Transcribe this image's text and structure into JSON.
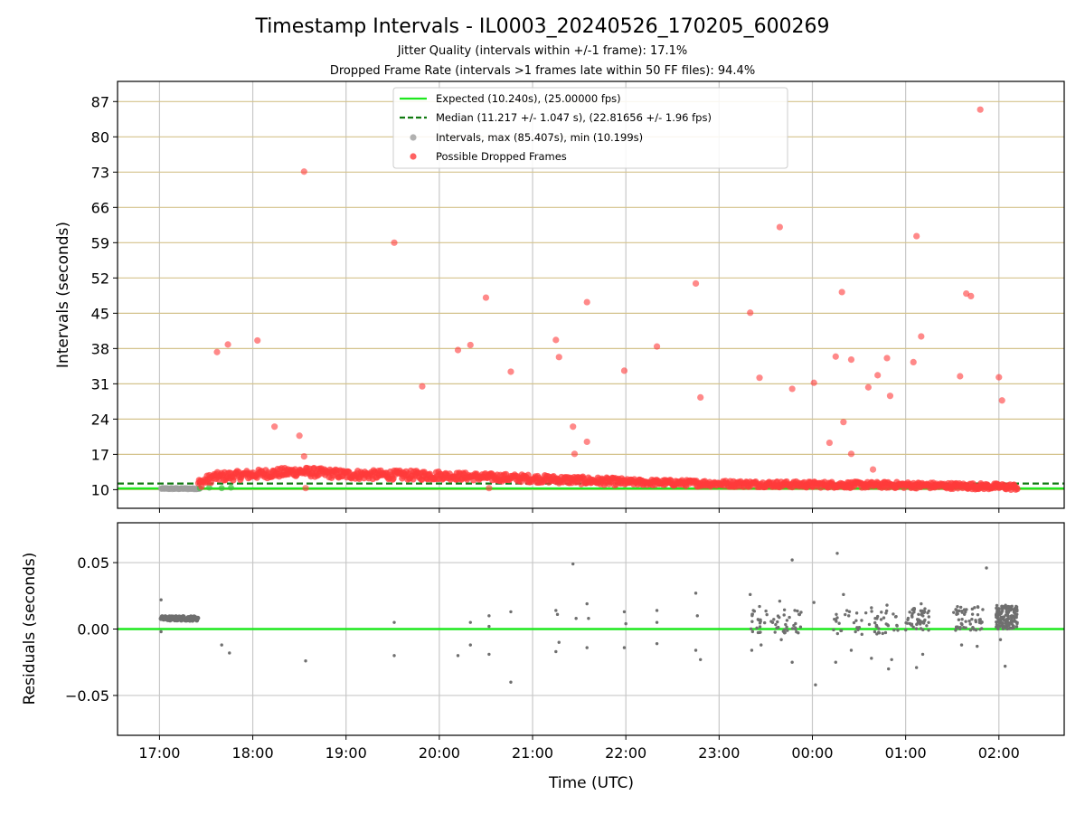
{
  "chart_data": [
    {
      "type": "scatter",
      "panel": "intervals",
      "title": "Timestamp Intervals - IL0003_20240526_170205_600269",
      "subtitles": [
        "Jitter Quality (intervals within +/-1 frame): 17.1%",
        "Dropped Frame Rate (intervals >1 frames late within 50 FF files): 94.4%"
      ],
      "ylabel": "Intervals (seconds)",
      "xlabel": "",
      "ylim": [
        6.3,
        91.0
      ],
      "xlim_hours": [
        16.55,
        26.7
      ],
      "y_ticks": [
        10,
        17,
        24,
        31,
        38,
        45,
        52,
        59,
        66,
        73,
        80,
        87
      ],
      "y_tick_labels": [
        "10",
        "17",
        "24",
        "31",
        "38",
        "45",
        "52",
        "59",
        "66",
        "73",
        "80",
        "87"
      ],
      "horizontal_grid_color": "#d4c38c",
      "vertical_grid": true,
      "legend": {
        "placement": "upper-center",
        "entries": [
          {
            "label": "Expected (10.240s), (25.00000 fps)",
            "marker": "line",
            "color": "#1ee81e"
          },
          {
            "label": "Median (11.217 +/- 1.047 s), (22.81656 +/- 1.96 fps)",
            "marker": "dashed-line",
            "color": "#117a11"
          },
          {
            "label": "Intervals, max (85.407s), min (10.199s)",
            "marker": "dot",
            "color": "#9e9e9e"
          },
          {
            "label": "Possible Dropped Frames",
            "marker": "dot",
            "color": "#ff3b3b"
          }
        ]
      },
      "expected_interval": 10.24,
      "median_interval": 11.217,
      "series": [
        {
          "name": "Intervals, max (85.407s), min (10.199s)",
          "color": "#9e9e9e",
          "description_points": "dense band ~10.2 s from 17:00 to 17:25"
        },
        {
          "name": "Possible Dropped Frames",
          "color": "#ff3b3b",
          "band": [
            {
              "x": "17:25",
              "y": 11.2
            },
            {
              "x": "17:35",
              "y": 12.5
            },
            {
              "x": "18:00",
              "y": 13.0
            },
            {
              "x": "18:30",
              "y": 13.6
            },
            {
              "x": "19:00",
              "y": 13.0
            },
            {
              "x": "20:00",
              "y": 12.8
            },
            {
              "x": "21:00",
              "y": 12.2
            },
            {
              "x": "22:00",
              "y": 11.5
            },
            {
              "x": "23:00",
              "y": 11.2
            },
            {
              "x": "00:00",
              "y": 11.0
            },
            {
              "x": "01:00",
              "y": 10.9
            },
            {
              "x": "02:00",
              "y": 10.6
            },
            {
              "x": "02:12",
              "y": 10.5
            }
          ],
          "outliers": [
            {
              "x": "17:37",
              "y": 37.3
            },
            {
              "x": "17:44",
              "y": 38.8
            },
            {
              "x": "18:03",
              "y": 39.6
            },
            {
              "x": "18:14",
              "y": 22.5
            },
            {
              "x": "18:30",
              "y": 20.7
            },
            {
              "x": "18:33",
              "y": 16.6
            },
            {
              "x": "18:33",
              "y": 73.1
            },
            {
              "x": "18:34",
              "y": 10.3
            },
            {
              "x": "19:31",
              "y": 59.0
            },
            {
              "x": "19:49",
              "y": 30.5
            },
            {
              "x": "20:12",
              "y": 37.7
            },
            {
              "x": "20:20",
              "y": 38.7
            },
            {
              "x": "20:30",
              "y": 48.1
            },
            {
              "x": "20:46",
              "y": 33.4
            },
            {
              "x": "20:32",
              "y": 10.3
            },
            {
              "x": "21:15",
              "y": 39.7
            },
            {
              "x": "21:17",
              "y": 36.3
            },
            {
              "x": "21:26",
              "y": 22.5
            },
            {
              "x": "21:27",
              "y": 17.1
            },
            {
              "x": "21:35",
              "y": 19.5
            },
            {
              "x": "21:35",
              "y": 47.2
            },
            {
              "x": "21:59",
              "y": 33.6
            },
            {
              "x": "22:20",
              "y": 38.4
            },
            {
              "x": "22:45",
              "y": 50.9
            },
            {
              "x": "22:48",
              "y": 28.3
            },
            {
              "x": "23:20",
              "y": 45.1
            },
            {
              "x": "23:26",
              "y": 32.2
            },
            {
              "x": "23:39",
              "y": 62.1
            },
            {
              "x": "23:47",
              "y": 30.0
            },
            {
              "x": "00:01",
              "y": 31.2
            },
            {
              "x": "00:11",
              "y": 19.3
            },
            {
              "x": "00:15",
              "y": 36.4
            },
            {
              "x": "00:19",
              "y": 49.2
            },
            {
              "x": "00:20",
              "y": 23.4
            },
            {
              "x": "00:25",
              "y": 35.8
            },
            {
              "x": "00:25",
              "y": 17.1
            },
            {
              "x": "00:36",
              "y": 30.3
            },
            {
              "x": "00:39",
              "y": 14.0
            },
            {
              "x": "00:42",
              "y": 32.7
            },
            {
              "x": "00:48",
              "y": 36.1
            },
            {
              "x": "00:50",
              "y": 28.6
            },
            {
              "x": "01:05",
              "y": 35.3
            },
            {
              "x": "01:07",
              "y": 60.3
            },
            {
              "x": "01:10",
              "y": 40.4
            },
            {
              "x": "01:35",
              "y": 32.5
            },
            {
              "x": "01:39",
              "y": 48.9
            },
            {
              "x": "01:42",
              "y": 48.4
            },
            {
              "x": "01:48",
              "y": 85.4
            },
            {
              "x": "02:00",
              "y": 32.3
            },
            {
              "x": "02:02",
              "y": 27.7
            }
          ]
        }
      ]
    },
    {
      "type": "scatter",
      "panel": "residuals",
      "ylabel": "Residuals (seconds)",
      "xlabel": "Time (UTC)",
      "ylim": [
        -0.08,
        0.08
      ],
      "y_ticks": [
        0.05,
        0.0,
        -0.05
      ],
      "y_tick_labels": [
        "0.05",
        "0.00",
        "−0.05"
      ],
      "x_tick_labels": [
        "17:00",
        "18:00",
        "19:00",
        "20:00",
        "21:00",
        "22:00",
        "23:00",
        "00:00",
        "01:00",
        "02:00"
      ],
      "x_tick_hours": [
        17,
        18,
        19,
        20,
        21,
        22,
        23,
        24,
        25,
        26
      ],
      "zero_line_color": "#1ee81e",
      "series": [
        {
          "name": "",
          "color": "#6f6f6f",
          "points": [
            {
              "x": "17:01",
              "y": 0.022
            },
            {
              "x": "17:01",
              "y": -0.002
            },
            {
              "x": "17:40",
              "y": -0.012
            },
            {
              "x": "17:45",
              "y": -0.018
            },
            {
              "x": "18:34",
              "y": -0.024
            },
            {
              "x": "19:31",
              "y": 0.005
            },
            {
              "x": "19:31",
              "y": -0.02
            },
            {
              "x": "20:12",
              "y": -0.02
            },
            {
              "x": "20:20",
              "y": 0.005
            },
            {
              "x": "20:20",
              "y": -0.012
            },
            {
              "x": "20:32",
              "y": 0.01
            },
            {
              "x": "20:32",
              "y": 0.002
            },
            {
              "x": "20:32",
              "y": -0.019
            },
            {
              "x": "20:46",
              "y": 0.013
            },
            {
              "x": "20:46",
              "y": -0.04
            },
            {
              "x": "21:15",
              "y": 0.014
            },
            {
              "x": "21:16",
              "y": 0.011
            },
            {
              "x": "21:15",
              "y": -0.017
            },
            {
              "x": "21:17",
              "y": -0.01
            },
            {
              "x": "21:26",
              "y": 0.049
            },
            {
              "x": "21:28",
              "y": 0.008
            },
            {
              "x": "21:35",
              "y": 0.019
            },
            {
              "x": "21:36",
              "y": 0.008
            },
            {
              "x": "21:35",
              "y": -0.014
            },
            {
              "x": "21:59",
              "y": 0.013
            },
            {
              "x": "22:00",
              "y": 0.004
            },
            {
              "x": "21:59",
              "y": -0.014
            },
            {
              "x": "22:20",
              "y": 0.014
            },
            {
              "x": "22:20",
              "y": 0.005
            },
            {
              "x": "22:20",
              "y": -0.011
            },
            {
              "x": "22:45",
              "y": 0.027
            },
            {
              "x": "22:46",
              "y": 0.01
            },
            {
              "x": "22:45",
              "y": -0.016
            },
            {
              "x": "22:48",
              "y": -0.023
            },
            {
              "x": "23:20",
              "y": 0.026
            },
            {
              "x": "23:21",
              "y": -0.016
            },
            {
              "x": "23:26",
              "y": 0.017
            },
            {
              "x": "23:27",
              "y": -0.012
            },
            {
              "x": "23:39",
              "y": 0.021
            },
            {
              "x": "23:40",
              "y": -0.008
            },
            {
              "x": "23:47",
              "y": 0.052
            },
            {
              "x": "23:47",
              "y": -0.025
            },
            {
              "x": "00:01",
              "y": 0.02
            },
            {
              "x": "00:02",
              "y": -0.042
            },
            {
              "x": "00:16",
              "y": 0.057
            },
            {
              "x": "00:15",
              "y": -0.025
            },
            {
              "x": "00:20",
              "y": 0.026
            },
            {
              "x": "00:25",
              "y": -0.016
            },
            {
              "x": "00:38",
              "y": 0.016
            },
            {
              "x": "00:38",
              "y": -0.022
            },
            {
              "x": "00:48",
              "y": 0.018
            },
            {
              "x": "00:49",
              "y": -0.03
            },
            {
              "x": "00:51",
              "y": -0.023
            },
            {
              "x": "01:07",
              "y": -0.029
            },
            {
              "x": "01:10",
              "y": 0.019
            },
            {
              "x": "01:11",
              "y": -0.019
            },
            {
              "x": "01:36",
              "y": -0.012
            },
            {
              "x": "01:46",
              "y": -0.013
            },
            {
              "x": "01:52",
              "y": 0.046
            },
            {
              "x": "02:01",
              "y": -0.008
            },
            {
              "x": "02:04",
              "y": -0.028
            }
          ],
          "dense_clusters": [
            {
              "x_from": "17:01",
              "x_to": "17:25",
              "y": 0.008
            },
            {
              "x_from": "23:20",
              "x_to": "23:55",
              "y": 0.006
            },
            {
              "x_from": "00:10",
              "x_to": "00:55",
              "y": 0.005
            },
            {
              "x_from": "01:00",
              "x_to": "01:15",
              "y": 0.008
            },
            {
              "x_from": "01:30",
              "x_to": "01:50",
              "y": 0.008
            },
            {
              "x_from": "01:58",
              "x_to": "02:12",
              "y": 0.009
            }
          ]
        }
      ]
    }
  ]
}
